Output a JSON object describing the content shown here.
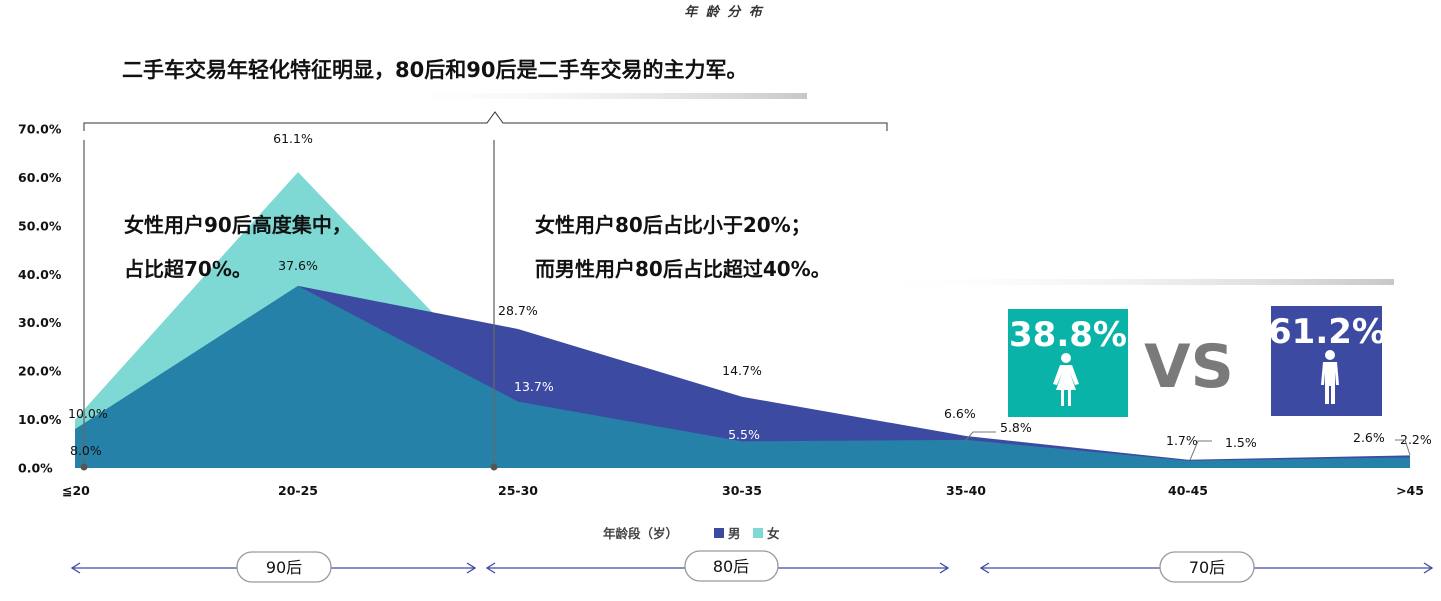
{
  "top_title": "年 龄 分 布",
  "headline": "二手车交易年轻化特征明显，80后和90后是二手车交易的主力军。",
  "annotation_left": [
    "女性用户90后高度集中，",
    "占比超70%。"
  ],
  "annotation_right": [
    "女性用户80后占比小于20%；",
    "而男性用户80后占比超过40%。"
  ],
  "chart_data": {
    "type": "area",
    "categories": [
      "≦20",
      "20-25",
      "25-30",
      "30-35",
      "35-40",
      "40-45",
      ">45"
    ],
    "series": [
      {
        "name": "男",
        "values": [
          8.0,
          37.6,
          28.7,
          14.7,
          6.6,
          1.7,
          2.6
        ],
        "color": "#3d4aa2",
        "labels": [
          "8.0%",
          "37.6%",
          "28.7%",
          "14.7%",
          "6.6%",
          "1.7%",
          "2.6%"
        ]
      },
      {
        "name": "女",
        "values": [
          10.0,
          61.1,
          13.7,
          5.5,
          5.8,
          1.5,
          2.2
        ],
        "color": "#7ed8d3",
        "labels": [
          "10.0%",
          "61.1%",
          "13.7%",
          "5.5%",
          "5.8%",
          "1.5%",
          "2.2%"
        ]
      }
    ],
    "overlap_color": "#2681a8",
    "yticks": [
      "0.0%",
      "10.0%",
      "20.0%",
      "30.0%",
      "40.0%",
      "50.0%",
      "60.0%",
      "70.0%"
    ],
    "ylim": [
      0,
      70
    ],
    "xlabel": "年龄段（岁）",
    "legend": [
      "男",
      "女"
    ]
  },
  "comparison": {
    "female_pct": "38.8%",
    "female_color": "#09b3a7",
    "vs": "VS",
    "male_pct": "61.2%",
    "male_color": "#3d4aa2"
  },
  "generations": [
    "90后",
    "80后",
    "70后"
  ]
}
